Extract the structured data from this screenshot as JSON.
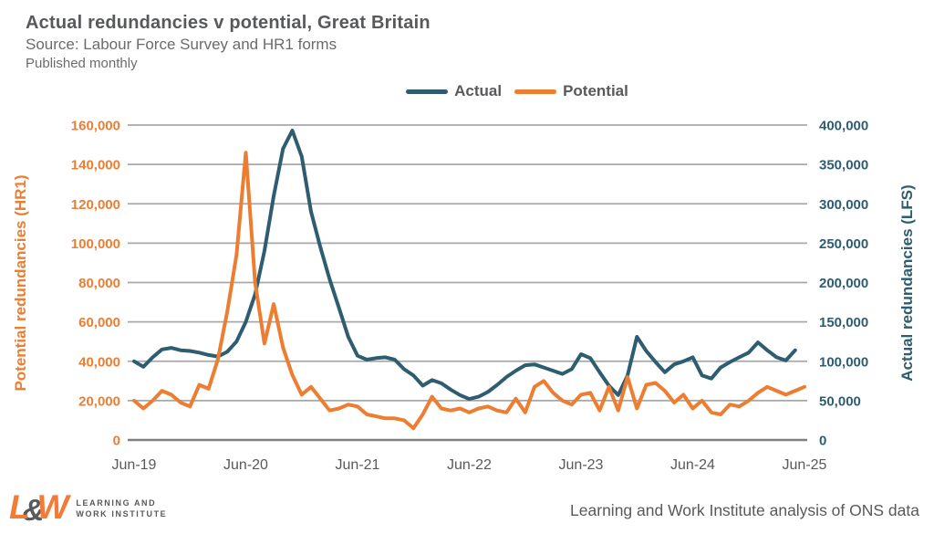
{
  "header": {
    "title": "Actual redundancies v potential, Great Britain",
    "subtitle": "Source: Labour Force Survey and HR1 forms",
    "frequency": "Published monthly"
  },
  "legend": {
    "items": [
      {
        "label": "Actual",
        "color": "#2E5D71"
      },
      {
        "label": "Potential",
        "color": "#ED7D31"
      }
    ]
  },
  "footer": {
    "logo": {
      "letter_l": "L",
      "ampersand": "&",
      "letter_w": "W",
      "line1": "LEARNING AND",
      "line2": "WORK INSTITUTE"
    },
    "credit": "Learning and Work Institute analysis of ONS data"
  },
  "colors": {
    "orange": "#ED7D31",
    "teal": "#2E5D71",
    "grid": "#A8A8A8",
    "axis_line": "#7F7F7F",
    "text_gray": "#58595B"
  },
  "chart_data": {
    "type": "line",
    "title": "Actual redundancies v potential, Great Britain",
    "grid": true,
    "legend_position": "top",
    "x_tick_labels": [
      "Jun-19",
      "Jun-20",
      "Jun-21",
      "Jun-22",
      "Jun-23",
      "Jun-24",
      "Jun-25"
    ],
    "left_axis": {
      "title": "Potential redundancies (HR1)",
      "min": 0,
      "max": 160000,
      "tick_interval": 20000,
      "tick_labels": [
        "0",
        "20,000",
        "40,000",
        "60,000",
        "80,000",
        "100,000",
        "120,000",
        "140,000",
        "160,000"
      ],
      "color": "#ED7D31"
    },
    "right_axis": {
      "title": "Actual redundancies (LFS)",
      "min": 0,
      "max": 400000,
      "tick_interval": 50000,
      "tick_labels": [
        "0",
        "50,000",
        "100,000",
        "150,000",
        "200,000",
        "250,000",
        "300,000",
        "350,000",
        "400,000"
      ],
      "color": "#2E5D71"
    },
    "months": [
      "Jun-19",
      "Jul-19",
      "Aug-19",
      "Sep-19",
      "Oct-19",
      "Nov-19",
      "Dec-19",
      "Jan-20",
      "Feb-20",
      "Mar-20",
      "Apr-20",
      "May-20",
      "Jun-20",
      "Jul-20",
      "Aug-20",
      "Sep-20",
      "Oct-20",
      "Nov-20",
      "Dec-20",
      "Jan-21",
      "Feb-21",
      "Mar-21",
      "Apr-21",
      "May-21",
      "Jun-21",
      "Jul-21",
      "Aug-21",
      "Sep-21",
      "Oct-21",
      "Nov-21",
      "Dec-21",
      "Jan-22",
      "Feb-22",
      "Mar-22",
      "Apr-22",
      "May-22",
      "Jun-22",
      "Jul-22",
      "Aug-22",
      "Sep-22",
      "Oct-22",
      "Nov-22",
      "Dec-22",
      "Jan-23",
      "Feb-23",
      "Mar-23",
      "Apr-23",
      "May-23",
      "Jun-23",
      "Jul-23",
      "Aug-23",
      "Sep-23",
      "Oct-23",
      "Nov-23",
      "Dec-23",
      "Jan-24",
      "Feb-24",
      "Mar-24",
      "Apr-24",
      "May-24",
      "Jun-24",
      "Jul-24",
      "Aug-24",
      "Sep-24",
      "Oct-24",
      "Nov-24",
      "Dec-24",
      "Jan-25",
      "Feb-25",
      "Mar-25",
      "Apr-25",
      "May-25",
      "Jun-25"
    ],
    "series": [
      {
        "name": "Actual",
        "axis": "right",
        "color": "#2E5D71",
        "values": [
          100000,
          93000,
          105000,
          115000,
          117000,
          114000,
          113000,
          111000,
          108000,
          106000,
          112000,
          125000,
          150000,
          185000,
          240000,
          310000,
          370000,
          393000,
          360000,
          290000,
          245000,
          204000,
          168000,
          131000,
          107000,
          102000,
          104000,
          105000,
          102000,
          90000,
          82000,
          69000,
          76000,
          72000,
          64000,
          57000,
          52000,
          55000,
          61000,
          70000,
          80000,
          88000,
          95000,
          96000,
          92000,
          88000,
          84000,
          90000,
          109000,
          104000,
          86000,
          69000,
          57000,
          82000,
          131000,
          113000,
          99000,
          86000,
          96000,
          100000,
          105000,
          82000,
          78000,
          92000,
          99000,
          105000,
          111000,
          124000,
          114000,
          105000,
          101000,
          114000,
          null
        ]
      },
      {
        "name": "Potential",
        "axis": "left",
        "color": "#ED7D31",
        "values": [
          20000,
          16000,
          20000,
          25000,
          23000,
          19000,
          17000,
          28000,
          26000,
          41000,
          65000,
          94000,
          146000,
          80000,
          49000,
          69000,
          47000,
          33000,
          23000,
          27000,
          21000,
          15000,
          16000,
          18000,
          17000,
          13000,
          12000,
          11000,
          11000,
          10000,
          6000,
          13000,
          22000,
          16000,
          15000,
          16000,
          14000,
          16000,
          17000,
          15000,
          14000,
          21000,
          14000,
          27000,
          30000,
          24000,
          20000,
          18000,
          23000,
          24000,
          15000,
          27000,
          15000,
          32000,
          16000,
          28000,
          29000,
          25000,
          19000,
          23000,
          16000,
          20000,
          14000,
          13000,
          18000,
          17000,
          20000,
          24000,
          27000,
          25000,
          23000,
          25000,
          27000
        ]
      }
    ]
  }
}
